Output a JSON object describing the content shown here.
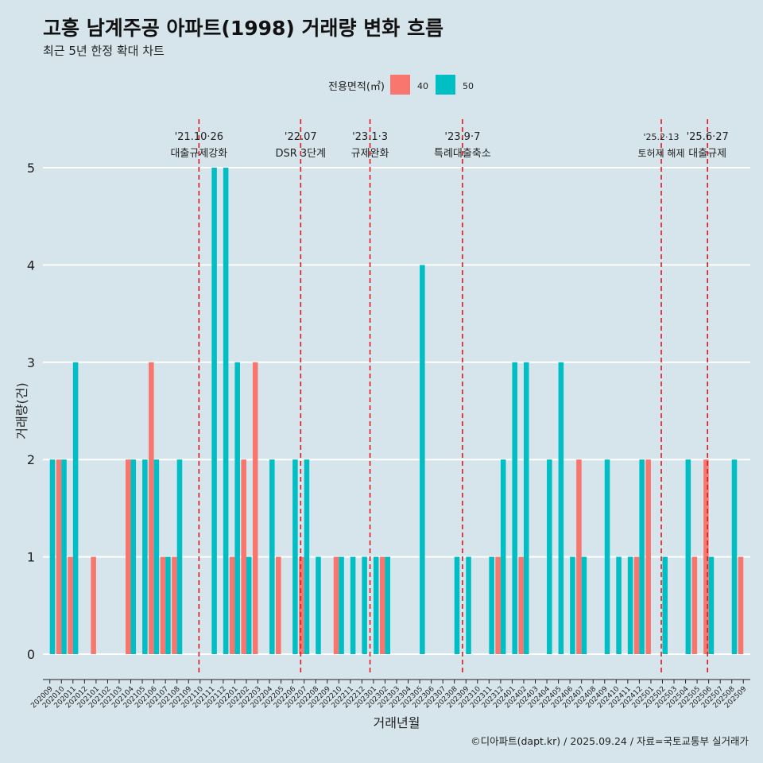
{
  "chart_data": {
    "type": "bar",
    "title": "고흥 남계주공 아파트(1998) 거래량 변화 흐름",
    "subtitle": "최근 5년 한정 확대 차트",
    "xlabel": "거래년월",
    "ylabel": "거래량(건)",
    "ylim": [
      0,
      5
    ],
    "y_ticks": [
      0,
      1,
      2,
      3,
      4,
      5
    ],
    "legend": {
      "title": "전용면적(㎡)",
      "position": "top",
      "entries": [
        {
          "label": "40",
          "color": "#f8766d"
        },
        {
          "label": "50",
          "color": "#00bfc4"
        }
      ]
    },
    "categories": [
      "202009",
      "202010",
      "202011",
      "202012",
      "202101",
      "202102",
      "202103",
      "202104",
      "202105",
      "202106",
      "202107",
      "202108",
      "202109",
      "202110",
      "202111",
      "202112",
      "202201",
      "202202",
      "202203",
      "202204",
      "202205",
      "202206",
      "202207",
      "202208",
      "202209",
      "202210",
      "202211",
      "202212",
      "202301",
      "202302",
      "202303",
      "202304",
      "202305",
      "202306",
      "202307",
      "202308",
      "202309",
      "202310",
      "202311",
      "202312",
      "202401",
      "202402",
      "202403",
      "202404",
      "202405",
      "202406",
      "202407",
      "202408",
      "202409",
      "202410",
      "202411",
      "202412",
      "202501",
      "202502",
      "202503",
      "202504",
      "202505",
      "202506",
      "202507",
      "202508",
      "202509"
    ],
    "series": [
      {
        "name": "40",
        "color": "#f8766d",
        "values": [
          0,
          2,
          1,
          0,
          1,
          0,
          0,
          2,
          0,
          3,
          1,
          1,
          0,
          0,
          0,
          0,
          1,
          2,
          3,
          0,
          1,
          0,
          1,
          0,
          0,
          1,
          0,
          0,
          0,
          1,
          0,
          0,
          0,
          0,
          0,
          0,
          0,
          0,
          0,
          1,
          0,
          1,
          0,
          0,
          0,
          0,
          2,
          0,
          0,
          0,
          0,
          1,
          2,
          0,
          0,
          0,
          1,
          2,
          0,
          0,
          1
        ]
      },
      {
        "name": "50",
        "color": "#00bfc4",
        "values": [
          2,
          2,
          3,
          0,
          0,
          0,
          0,
          2,
          2,
          2,
          1,
          2,
          0,
          0,
          5,
          5,
          3,
          1,
          0,
          2,
          0,
          2,
          2,
          1,
          0,
          1,
          1,
          1,
          1,
          1,
          0,
          0,
          4,
          0,
          0,
          1,
          1,
          0,
          1,
          2,
          3,
          3,
          0,
          2,
          3,
          1,
          1,
          0,
          2,
          1,
          1,
          2,
          0,
          1,
          0,
          2,
          0,
          1,
          0,
          2,
          0
        ]
      }
    ],
    "annotations": [
      {
        "date": "'21.10·26",
        "label": "대출규제강화",
        "position": 13.4
      },
      {
        "date": "'22.07",
        "label": "DSR 3단계",
        "position": 22.2
      },
      {
        "date": "'23.1·3",
        "label": "규제완화",
        "position": 28.2
      },
      {
        "date": "'23.9·7",
        "label": "특례대출축소",
        "position": 36.2
      },
      {
        "date": "'25.2·13",
        "label": "토허제 해제",
        "position": 53.4
      },
      {
        "date": "'25.6·27",
        "label": "대출규제",
        "position": 57.4
      }
    ],
    "caption": "©디아파트(dapt.kr) / 2025.09.24 / 자료=국토교통부 실거래가"
  }
}
